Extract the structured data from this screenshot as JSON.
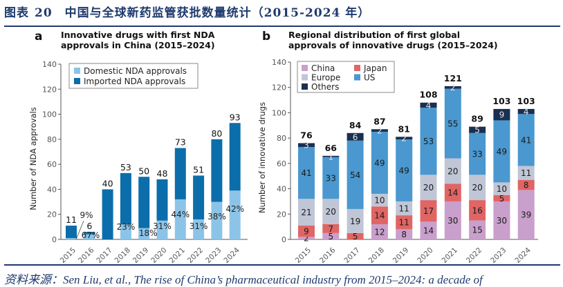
{
  "header": {
    "label": "图表",
    "number": "20",
    "title": "中国与全球新药监管获批数量统计（2015-2024 年）"
  },
  "source": "资料来源：Sen Liu, et al., The rise of China’s pharmaceutical industry from 2015–2024: a decade of",
  "chart_data": [
    {
      "panel": "a",
      "type": "bar",
      "stacked": true,
      "title": "Innovative drugs with first NDA approvals in China (2015–2024)",
      "xlabel": "",
      "ylabel": "Number of NDA approvals",
      "ylim": [
        0,
        140
      ],
      "yticks": [
        0,
        20,
        40,
        60,
        80,
        100,
        120,
        140
      ],
      "categories": [
        "2015",
        "2016",
        "2017",
        "2018",
        "2019",
        "2020",
        "2021",
        "2022",
        "2023",
        "2024"
      ],
      "series": [
        {
          "name": "Domestic NDA approvals",
          "color": "#8cc4e8",
          "values": [
            1,
            4,
            0,
            12,
            9,
            15,
            32,
            16,
            30,
            39
          ]
        },
        {
          "name": "Imported NDA approvals",
          "color": "#0b6eab",
          "values": [
            10,
            2,
            40,
            41,
            41,
            33,
            41,
            35,
            50,
            54
          ]
        }
      ],
      "totals": [
        11,
        6,
        40,
        53,
        50,
        48,
        73,
        51,
        80,
        93
      ],
      "domestic_share_labels": [
        "9%",
        "67%",
        "",
        "23%",
        "18%",
        "31%",
        "44%",
        "31%",
        "38%",
        "42%"
      ],
      "legend": "top-left",
      "grid": false
    },
    {
      "panel": "b",
      "type": "bar",
      "stacked": true,
      "title": "Regional distribution of first global approvals of innovative drugs (2015–2024)",
      "xlabel": "",
      "ylabel": "Number of innovative drugs",
      "ylim": [
        0,
        140
      ],
      "yticks": [
        0,
        20,
        40,
        60,
        80,
        100,
        120,
        140
      ],
      "categories": [
        "2015",
        "2016",
        "2017",
        "2018",
        "2019",
        "2020",
        "2021",
        "2022",
        "2023",
        "2024"
      ],
      "series": [
        {
          "name": "China",
          "color": "#c99fcb",
          "values": [
            2,
            5,
            0,
            12,
            8,
            14,
            30,
            15,
            30,
            39
          ]
        },
        {
          "name": "Japan",
          "color": "#e06565",
          "values": [
            9,
            7,
            5,
            14,
            11,
            17,
            14,
            16,
            5,
            8
          ]
        },
        {
          "name": "Europe",
          "color": "#c0c6d5",
          "values": [
            21,
            20,
            19,
            10,
            11,
            20,
            20,
            20,
            10,
            11
          ]
        },
        {
          "name": "US",
          "color": "#4a98cf",
          "values": [
            41,
            33,
            54,
            49,
            49,
            53,
            55,
            33,
            49,
            41
          ]
        },
        {
          "name": "Others",
          "color": "#1b2f4e",
          "values": [
            3,
            1,
            6,
            2,
            2,
            4,
            2,
            5,
            9,
            4
          ]
        }
      ],
      "totals": [
        76,
        66,
        84,
        87,
        81,
        108,
        121,
        89,
        103,
        103
      ],
      "legend": "top-left",
      "grid": false
    }
  ]
}
